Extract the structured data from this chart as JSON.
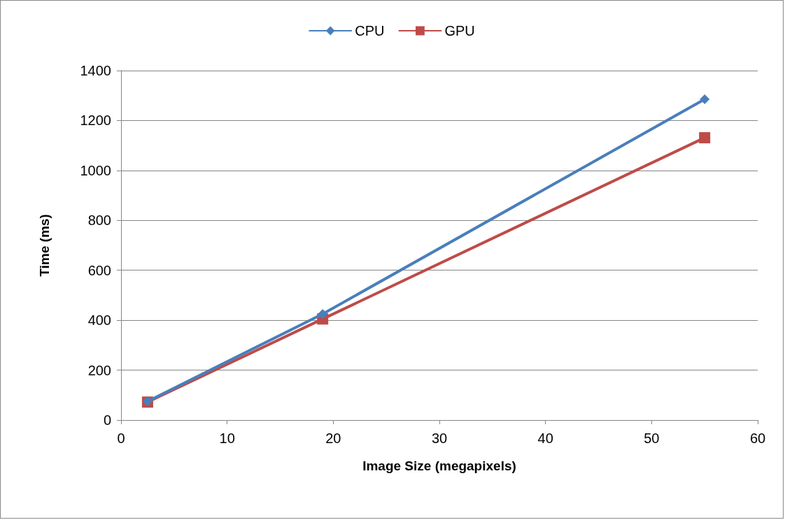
{
  "chart_data": {
    "type": "line",
    "xlabel": "Image Size (megapixels)",
    "ylabel": "Time (ms)",
    "series": [
      {
        "name": "CPU",
        "color": "#4a7ebb",
        "marker": "diamond",
        "x": [
          2.5,
          19,
          55
        ],
        "values": [
          75,
          425,
          1285
        ]
      },
      {
        "name": "GPU",
        "color": "#be4b48",
        "marker": "square",
        "x": [
          2.5,
          19,
          55
        ],
        "values": [
          72,
          405,
          1131
        ]
      }
    ],
    "xlim": [
      0,
      60
    ],
    "xticks": [
      0,
      10,
      20,
      30,
      40,
      50,
      60
    ],
    "ylim": [
      0,
      1400
    ],
    "yticks": [
      0,
      200,
      400,
      600,
      800,
      1000,
      1200,
      1400
    ],
    "grid": "y",
    "legend": "top",
    "line_style": "solid"
  }
}
